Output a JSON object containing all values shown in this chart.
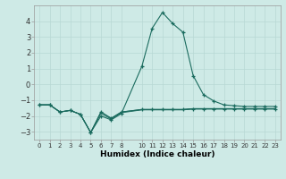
{
  "xlabel": "Humidex (Indice chaleur)",
  "background_color": "#ceeae6",
  "line_color": "#1a6b5e",
  "grid_color": "#b8d8d4",
  "x_values": [
    0,
    1,
    2,
    3,
    4,
    5,
    6,
    7,
    8,
    10,
    11,
    12,
    13,
    14,
    15,
    16,
    17,
    18,
    19,
    20,
    21,
    22,
    23
  ],
  "y_main": [
    -1.3,
    -1.3,
    -1.75,
    -1.65,
    -1.9,
    -3.05,
    -2.0,
    -2.25,
    -1.85,
    1.15,
    3.55,
    4.55,
    3.85,
    3.3,
    0.55,
    -0.65,
    -1.05,
    -1.3,
    -1.35,
    -1.4,
    -1.4,
    -1.4,
    -1.4
  ],
  "y_low": [
    -1.3,
    -1.3,
    -1.75,
    -1.65,
    -1.9,
    -3.05,
    -1.75,
    -2.15,
    -1.75,
    -1.6,
    -1.6,
    -1.6,
    -1.6,
    -1.6,
    -1.55,
    -1.55,
    -1.55,
    -1.55,
    -1.55,
    -1.55,
    -1.55,
    -1.55,
    -1.55
  ],
  "y_mid": [
    -1.3,
    -1.3,
    -1.75,
    -1.65,
    -1.9,
    -3.05,
    -1.75,
    -2.15,
    -1.75,
    -1.58,
    -1.58,
    -1.58,
    -1.58,
    -1.58,
    -1.53,
    -1.53,
    -1.53,
    -1.53,
    -1.53,
    -1.53,
    -1.53,
    -1.53,
    -1.53
  ],
  "y_hi": [
    -1.3,
    -1.3,
    -1.75,
    -1.65,
    -1.9,
    -3.05,
    -1.85,
    -2.2,
    -1.8,
    -1.62,
    -1.62,
    -1.62,
    -1.62,
    -1.62,
    -1.57,
    -1.57,
    -1.57,
    -1.57,
    -1.57,
    -1.57,
    -1.57,
    -1.57,
    -1.57
  ],
  "ylim": [
    -3.5,
    5.0
  ],
  "xlim": [
    -0.5,
    23.5
  ],
  "yticks": [
    -3,
    -2,
    -1,
    0,
    1,
    2,
    3,
    4
  ],
  "xticks": [
    0,
    1,
    2,
    3,
    4,
    5,
    6,
    7,
    8,
    10,
    11,
    12,
    13,
    14,
    15,
    16,
    17,
    18,
    19,
    20,
    21,
    22,
    23
  ]
}
